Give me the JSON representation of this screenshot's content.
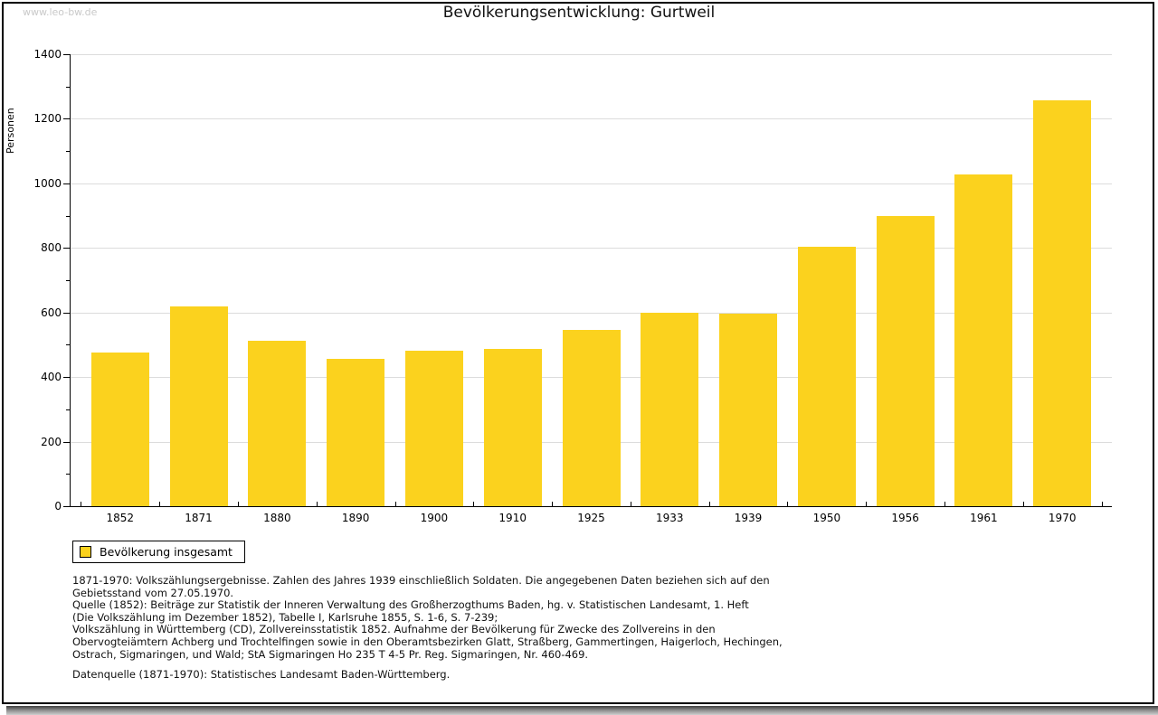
{
  "page": {
    "watermark": "www.leo-bw.de",
    "title": "Bevölkerungsentwicklung: Gurtweil"
  },
  "chart_data": {
    "type": "bar",
    "title": "Bevölkerungsentwicklung: Gurtweil",
    "xlabel": "",
    "ylabel": "Personen",
    "categories": [
      "1852",
      "1871",
      "1880",
      "1890",
      "1900",
      "1910",
      "1925",
      "1933",
      "1939",
      "1950",
      "1956",
      "1961",
      "1970"
    ],
    "values": [
      476,
      618,
      512,
      456,
      481,
      486,
      545,
      598,
      596,
      804,
      898,
      1027,
      1256
    ],
    "ylim": [
      0,
      1400
    ],
    "ytick_step": 200,
    "yminor_step": 100,
    "grid": true,
    "bar_color": "#FBD21E",
    "grid_color": "#dcdcdc",
    "legend": {
      "position": "bottom-left",
      "entries": [
        {
          "label": "Bevölkerung insgesamt",
          "swatch_color": "#FBD21E"
        }
      ]
    }
  },
  "footnotes": {
    "lines": [
      "1871-1970: Volkszählungsergebnisse. Zahlen des Jahres 1939 einschließlich Soldaten. Die angegebenen Daten beziehen sich auf den",
      "Gebietsstand vom 27.05.1970.",
      "Quelle (1852): Beiträge zur Statistik der Inneren Verwaltung des Großherzogthums Baden, hg. v. Statistischen Landesamt, 1. Heft",
      "(Die Volkszählung im Dezember 1852), Tabelle I, Karlsruhe 1855, S. 1-6, S. 7-239;",
      "Volkszählung in Württemberg (CD), Zollvereinsstatistik 1852. Aufnahme der Bevölkerung für Zwecke des Zollvereins in den",
      "Obervogteiämtern Achberg und Trochtelfingen sowie in den Oberamtsbezirken Glatt, Straßberg, Gammertingen, Haigerloch, Hechingen,",
      "Ostrach, Sigmaringen, und Wald; StA Sigmaringen Ho 235 T 4-5 Pr. Reg. Sigmaringen, Nr. 460-469."
    ],
    "datasource": "Datenquelle (1871-1970): Statistisches Landesamt Baden-Württemberg."
  }
}
